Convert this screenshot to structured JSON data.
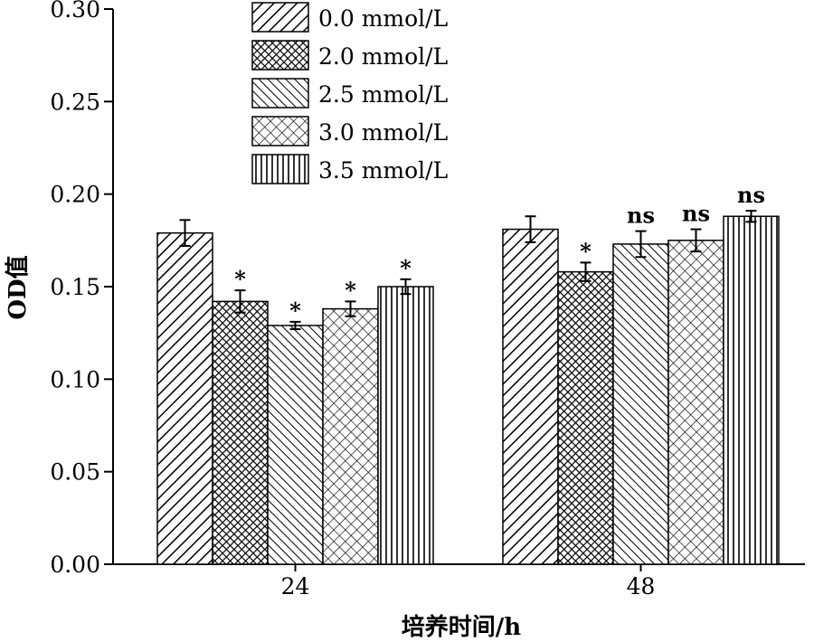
{
  "chart_data": {
    "type": "bar",
    "title": "",
    "xlabel": "培养时间/h",
    "ylabel": "OD值",
    "ylim": [
      0,
      0.3
    ],
    "yticks": [
      "0.00",
      "0.05",
      "0.10",
      "0.15",
      "0.20",
      "0.25",
      "0.30"
    ],
    "categories": [
      "24",
      "48"
    ],
    "legend_position": "top",
    "grid": false,
    "series": [
      {
        "name": "0.0 mmol/L",
        "pattern": "diag-right",
        "values": [
          0.179,
          0.181
        ],
        "errors": [
          0.007,
          0.007
        ],
        "significance": [
          "",
          ""
        ]
      },
      {
        "name": "2.0 mmol/L",
        "pattern": "dense-cross",
        "values": [
          0.142,
          0.158
        ],
        "errors": [
          0.006,
          0.005
        ],
        "significance": [
          "*",
          "*"
        ]
      },
      {
        "name": "2.5 mmol/L",
        "pattern": "diag-left",
        "values": [
          0.129,
          0.173
        ],
        "errors": [
          0.002,
          0.007
        ],
        "significance": [
          "*",
          "ns"
        ]
      },
      {
        "name": "3.0 mmol/L",
        "pattern": "diag-cross",
        "values": [
          0.138,
          0.175
        ],
        "errors": [
          0.004,
          0.006
        ],
        "significance": [
          "*",
          "ns"
        ]
      },
      {
        "name": "3.5 mmol/L",
        "pattern": "vertical",
        "values": [
          0.15,
          0.188
        ],
        "errors": [
          0.004,
          0.003
        ],
        "significance": [
          "*",
          "ns"
        ]
      }
    ]
  }
}
